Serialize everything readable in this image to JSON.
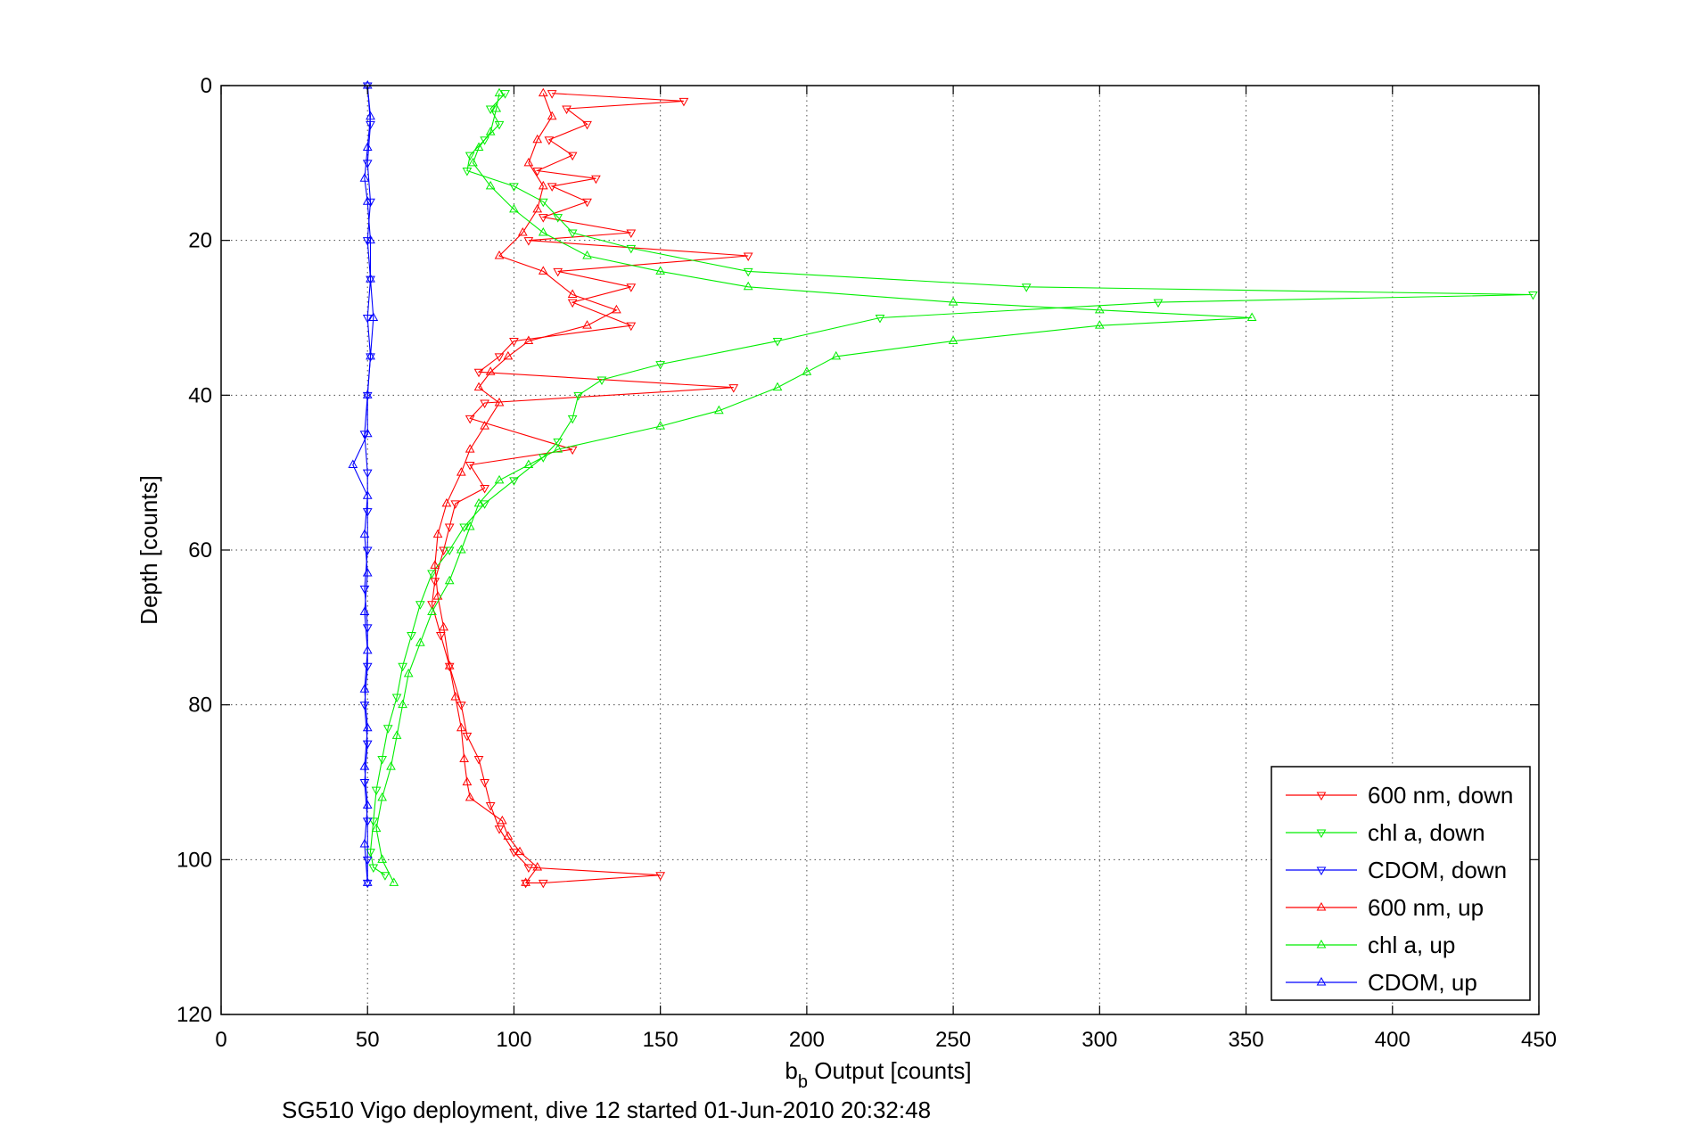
{
  "chart_data": {
    "type": "line",
    "xlabel_main": "b",
    "xlabel_sub": "b",
    "xlabel_rest": " Output [counts]",
    "ylabel": "Depth [counts]",
    "caption": "SG510 Vigo deployment, dive 12 started 01-Jun-2010 20:32:48",
    "xlim": [
      0,
      450
    ],
    "ylim": [
      0,
      120
    ],
    "y_reversed": true,
    "grid": true,
    "legend_position": "bottom-right",
    "x_ticks": [
      "0",
      "50",
      "100",
      "150",
      "200",
      "250",
      "300",
      "350",
      "400",
      "450"
    ],
    "y_ticks": [
      "0",
      "20",
      "40",
      "60",
      "80",
      "100",
      "120"
    ],
    "series": [
      {
        "name": "600 nm, down",
        "color": "#ff0000",
        "marker": "triangle-down",
        "points": [
          [
            113,
            1
          ],
          [
            158,
            2
          ],
          [
            118,
            3
          ],
          [
            125,
            5
          ],
          [
            112,
            7
          ],
          [
            120,
            9
          ],
          [
            108,
            11
          ],
          [
            128,
            12
          ],
          [
            113,
            13
          ],
          [
            125,
            15
          ],
          [
            110,
            17
          ],
          [
            140,
            19
          ],
          [
            105,
            20
          ],
          [
            180,
            22
          ],
          [
            115,
            24
          ],
          [
            140,
            26
          ],
          [
            120,
            28
          ],
          [
            140,
            31
          ],
          [
            100,
            33
          ],
          [
            95,
            35
          ],
          [
            88,
            37
          ],
          [
            175,
            39
          ],
          [
            90,
            41
          ],
          [
            85,
            43
          ],
          [
            120,
            47
          ],
          [
            85,
            49
          ],
          [
            90,
            52
          ],
          [
            80,
            54
          ],
          [
            78,
            57
          ],
          [
            76,
            60
          ],
          [
            73,
            64
          ],
          [
            72,
            67
          ],
          [
            75,
            71
          ],
          [
            78,
            75
          ],
          [
            82,
            80
          ],
          [
            84,
            84
          ],
          [
            88,
            87
          ],
          [
            90,
            90
          ],
          [
            92,
            93
          ],
          [
            95,
            96
          ],
          [
            100,
            99
          ],
          [
            105,
            101
          ],
          [
            150,
            102
          ],
          [
            110,
            103
          ],
          [
            104,
            103
          ]
        ]
      },
      {
        "name": "chl a, down",
        "color": "#00ee00",
        "marker": "triangle-down",
        "points": [
          [
            97,
            1
          ],
          [
            92,
            3
          ],
          [
            95,
            5
          ],
          [
            90,
            7
          ],
          [
            85,
            9
          ],
          [
            84,
            11
          ],
          [
            100,
            13
          ],
          [
            110,
            15
          ],
          [
            115,
            17
          ],
          [
            120,
            19
          ],
          [
            140,
            21
          ],
          [
            180,
            24
          ],
          [
            275,
            26
          ],
          [
            448,
            27
          ],
          [
            320,
            28
          ],
          [
            225,
            30
          ],
          [
            190,
            33
          ],
          [
            150,
            36
          ],
          [
            130,
            38
          ],
          [
            122,
            40
          ],
          [
            120,
            43
          ],
          [
            115,
            46
          ],
          [
            110,
            48
          ],
          [
            100,
            51
          ],
          [
            90,
            54
          ],
          [
            83,
            57
          ],
          [
            78,
            60
          ],
          [
            72,
            63
          ],
          [
            68,
            67
          ],
          [
            65,
            71
          ],
          [
            62,
            75
          ],
          [
            60,
            79
          ],
          [
            57,
            83
          ],
          [
            55,
            87
          ],
          [
            53,
            91
          ],
          [
            52,
            95
          ],
          [
            51,
            99
          ],
          [
            52,
            101
          ],
          [
            56,
            102
          ]
        ]
      },
      {
        "name": "CDOM, down",
        "color": "#0000ff",
        "marker": "triangle-down",
        "points": [
          [
            50,
            0
          ],
          [
            51,
            5
          ],
          [
            50,
            10
          ],
          [
            51,
            15
          ],
          [
            50,
            20
          ],
          [
            51,
            25
          ],
          [
            50,
            30
          ],
          [
            51,
            35
          ],
          [
            50,
            40
          ],
          [
            49,
            45
          ],
          [
            50,
            50
          ],
          [
            50,
            55
          ],
          [
            50,
            60
          ],
          [
            49,
            65
          ],
          [
            50,
            70
          ],
          [
            50,
            75
          ],
          [
            49,
            80
          ],
          [
            50,
            85
          ],
          [
            49,
            90
          ],
          [
            50,
            95
          ],
          [
            50,
            100
          ],
          [
            50,
            103
          ]
        ]
      },
      {
        "name": "600 nm, up",
        "color": "#ff0000",
        "marker": "triangle-up",
        "points": [
          [
            104,
            103
          ],
          [
            108,
            101
          ],
          [
            102,
            99
          ],
          [
            98,
            97
          ],
          [
            96,
            95
          ],
          [
            85,
            92
          ],
          [
            84,
            90
          ],
          [
            83,
            87
          ],
          [
            82,
            83
          ],
          [
            80,
            79
          ],
          [
            78,
            75
          ],
          [
            76,
            70
          ],
          [
            74,
            66
          ],
          [
            73,
            62
          ],
          [
            74,
            58
          ],
          [
            77,
            54
          ],
          [
            82,
            50
          ],
          [
            85,
            47
          ],
          [
            90,
            44
          ],
          [
            95,
            41
          ],
          [
            88,
            39
          ],
          [
            92,
            37
          ],
          [
            98,
            35
          ],
          [
            105,
            33
          ],
          [
            125,
            31
          ],
          [
            135,
            29
          ],
          [
            120,
            27
          ],
          [
            110,
            24
          ],
          [
            95,
            22
          ],
          [
            103,
            19
          ],
          [
            108,
            16
          ],
          [
            110,
            13
          ],
          [
            105,
            10
          ],
          [
            108,
            7
          ],
          [
            113,
            4
          ],
          [
            110,
            1
          ]
        ]
      },
      {
        "name": "chl a, up",
        "color": "#00ee00",
        "marker": "triangle-up",
        "points": [
          [
            59,
            103
          ],
          [
            55,
            100
          ],
          [
            53,
            96
          ],
          [
            55,
            92
          ],
          [
            58,
            88
          ],
          [
            60,
            84
          ],
          [
            62,
            80
          ],
          [
            64,
            76
          ],
          [
            68,
            72
          ],
          [
            72,
            68
          ],
          [
            78,
            64
          ],
          [
            82,
            60
          ],
          [
            85,
            57
          ],
          [
            88,
            54
          ],
          [
            95,
            51
          ],
          [
            105,
            49
          ],
          [
            115,
            47
          ],
          [
            150,
            44
          ],
          [
            170,
            42
          ],
          [
            190,
            39
          ],
          [
            200,
            37
          ],
          [
            210,
            35
          ],
          [
            250,
            33
          ],
          [
            300,
            31
          ],
          [
            352,
            30
          ],
          [
            300,
            29
          ],
          [
            250,
            28
          ],
          [
            180,
            26
          ],
          [
            150,
            24
          ],
          [
            125,
            22
          ],
          [
            110,
            19
          ],
          [
            100,
            16
          ],
          [
            92,
            13
          ],
          [
            86,
            10
          ],
          [
            88,
            8
          ],
          [
            92,
            6
          ],
          [
            94,
            3
          ],
          [
            95,
            1
          ]
        ]
      },
      {
        "name": "CDOM, up",
        "color": "#0000ff",
        "marker": "triangle-up",
        "points": [
          [
            50,
            103
          ],
          [
            49,
            98
          ],
          [
            50,
            93
          ],
          [
            49,
            88
          ],
          [
            50,
            83
          ],
          [
            49,
            78
          ],
          [
            50,
            73
          ],
          [
            49,
            68
          ],
          [
            50,
            63
          ],
          [
            49,
            58
          ],
          [
            50,
            53
          ],
          [
            45,
            49
          ],
          [
            50,
            45
          ],
          [
            50,
            40
          ],
          [
            51,
            35
          ],
          [
            52,
            30
          ],
          [
            51,
            25
          ],
          [
            51,
            20
          ],
          [
            50,
            15
          ],
          [
            49,
            12
          ],
          [
            50,
            8
          ],
          [
            51,
            4
          ],
          [
            50,
            0
          ]
        ]
      }
    ]
  }
}
